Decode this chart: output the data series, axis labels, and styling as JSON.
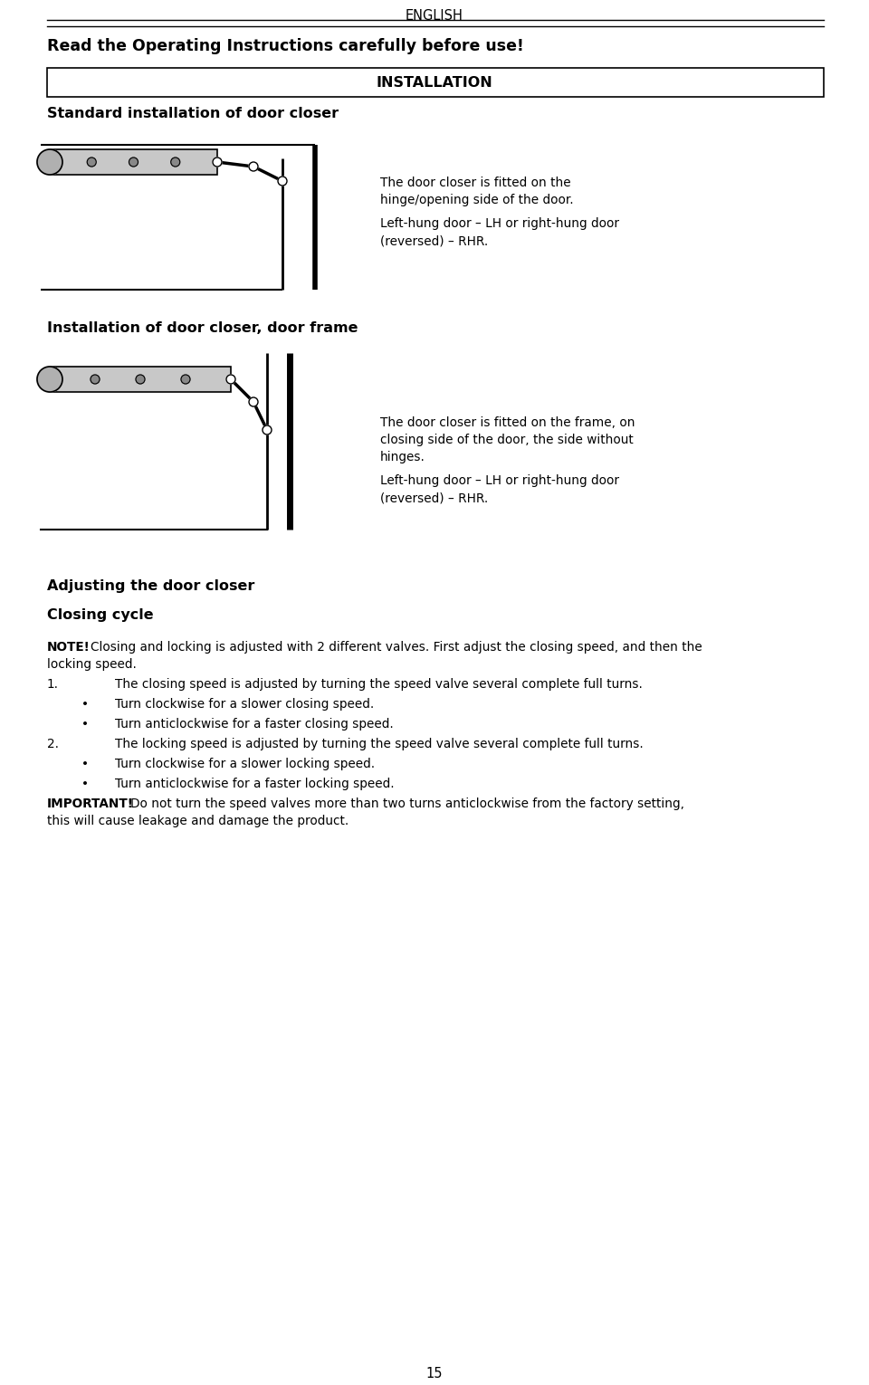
{
  "page_number": "15",
  "header_text": "ENGLISH",
  "warning_text": "Read the Operating Instructions carefully before use!",
  "section1_header": "INSTALLATION",
  "section1_title": "Standard installation of door closer",
  "section1_desc": "The door closer is fitted on the\nhinge/opening side of the door.\nLeft-hung door – LH or right-hung door\n(reversed) – RHR.",
  "section2_title": "Installation of door closer, door frame",
  "section2_desc": "The door closer is fitted on the frame, on\nclosing side of the door, the side without\nhinges.\nLeft-hung door – LH or right-hung door\n(reversed) – RHR.",
  "section3_title": "Adjusting the door closer",
  "section3_sub": "Closing cycle",
  "note_bold": "NOTE!",
  "note_text": " Closing and locking is adjusted with 2 different valves. First adjust the closing speed, and then the\nlocking speed.",
  "item1_num": "1.",
  "item1_text": "The closing speed is adjusted by turning the speed valve several complete full turns.",
  "bullet1": "Turn clockwise for a slower closing speed.",
  "bullet2": "Turn anticlockwise for a faster closing speed.",
  "item2_num": "2.",
  "item2_text": "The locking speed is adjusted by turning the speed valve several complete full turns.",
  "bullet3": "Turn clockwise for a slower locking speed.",
  "bullet4": "Turn anticlockwise for a faster locking speed.",
  "important_bold": "IMPORTANT!",
  "important_text": " Do not turn the speed valves more than two turns anticlockwise from the factory setting,\nthis will cause leakage and damage the product.",
  "bg_color": "#ffffff",
  "text_color": "#000000",
  "figw": 9.6,
  "figh": 15.3,
  "dpi": 100
}
